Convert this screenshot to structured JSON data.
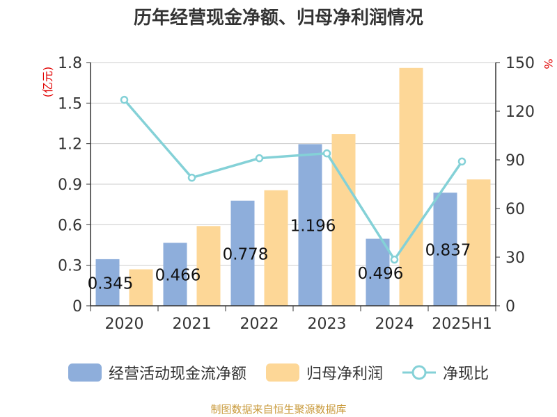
{
  "chart_data": {
    "type": "bar",
    "title": "历年经营现金净额、归母净利润情况",
    "categories": [
      "2020",
      "2021",
      "2022",
      "2023",
      "2024",
      "2025H1"
    ],
    "series": [
      {
        "name": "经营活动现金流净额",
        "kind": "bar",
        "axis": "left",
        "color": "#8eaedb",
        "values": [
          0.345,
          0.466,
          0.778,
          1.196,
          0.496,
          0.837
        ],
        "labels": [
          "0.345",
          "0.466",
          "0.778",
          "1.196",
          "0.496",
          "0.837"
        ]
      },
      {
        "name": "归母净利润",
        "kind": "bar",
        "axis": "left",
        "color": "#fdd797",
        "values": [
          0.27,
          0.59,
          0.855,
          1.27,
          1.76,
          0.935
        ]
      },
      {
        "name": "净现比",
        "kind": "line",
        "axis": "right",
        "color": "#84d1d7",
        "values": [
          127,
          79,
          91,
          94,
          28.5,
          89
        ]
      }
    ],
    "y_left": {
      "label": "(亿元)",
      "ylim": [
        0,
        1.8
      ],
      "ticks": [
        "0",
        "0.3",
        "0.6",
        "0.9",
        "1.2",
        "1.5",
        "1.8"
      ]
    },
    "y_right": {
      "label": "%",
      "ylim": [
        0,
        150
      ],
      "ticks": [
        "0",
        "30",
        "60",
        "90",
        "120",
        "150"
      ]
    },
    "grid": true,
    "legend_position": "bottom",
    "source": "制图数据来自恒生聚源数据库",
    "colors": {
      "axis": "#333333",
      "grid": "#cccccc",
      "axis_label": "#e00000",
      "source": "#c99a3b"
    }
  }
}
